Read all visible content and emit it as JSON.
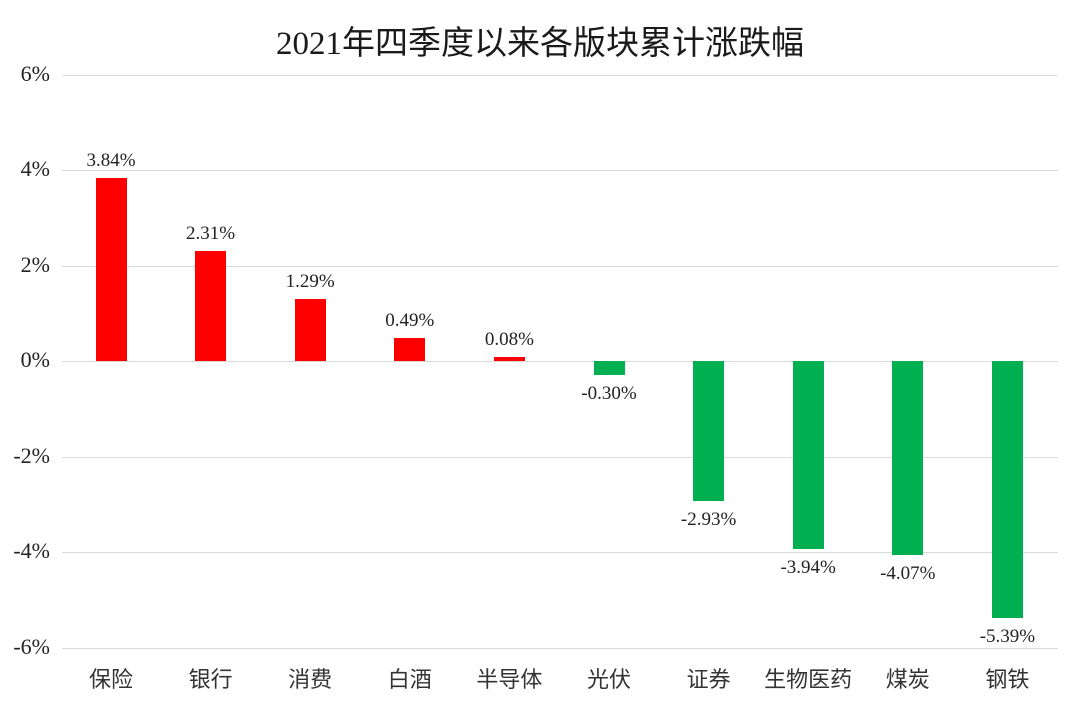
{
  "chart_data": {
    "type": "bar",
    "title": "2021年四季度以来各版块累计涨跌幅",
    "xlabel": "",
    "ylabel": "",
    "ylim": [
      -6,
      6
    ],
    "yticks": [
      "6%",
      "4%",
      "2%",
      "0%",
      "-2%",
      "-4%",
      "-6%"
    ],
    "ytick_values": [
      6,
      4,
      2,
      0,
      -2,
      -4,
      -6
    ],
    "grid": true,
    "legend": null,
    "categories": [
      "保险",
      "银行",
      "消费",
      "白酒",
      "半导体",
      "光伏",
      "证券",
      "生物医药",
      "煤炭",
      "钢铁"
    ],
    "values": [
      3.84,
      2.31,
      1.29,
      0.49,
      0.08,
      -0.3,
      -2.93,
      -3.94,
      -4.07,
      -5.39
    ],
    "data_labels": [
      "3.84%",
      "2.31%",
      "1.29%",
      "0.49%",
      "0.08%",
      "-0.30%",
      "-2.93%",
      "-3.94%",
      "-4.07%",
      "-5.39%"
    ],
    "colors": {
      "positive": "#ff0000",
      "negative": "#00b050"
    }
  }
}
